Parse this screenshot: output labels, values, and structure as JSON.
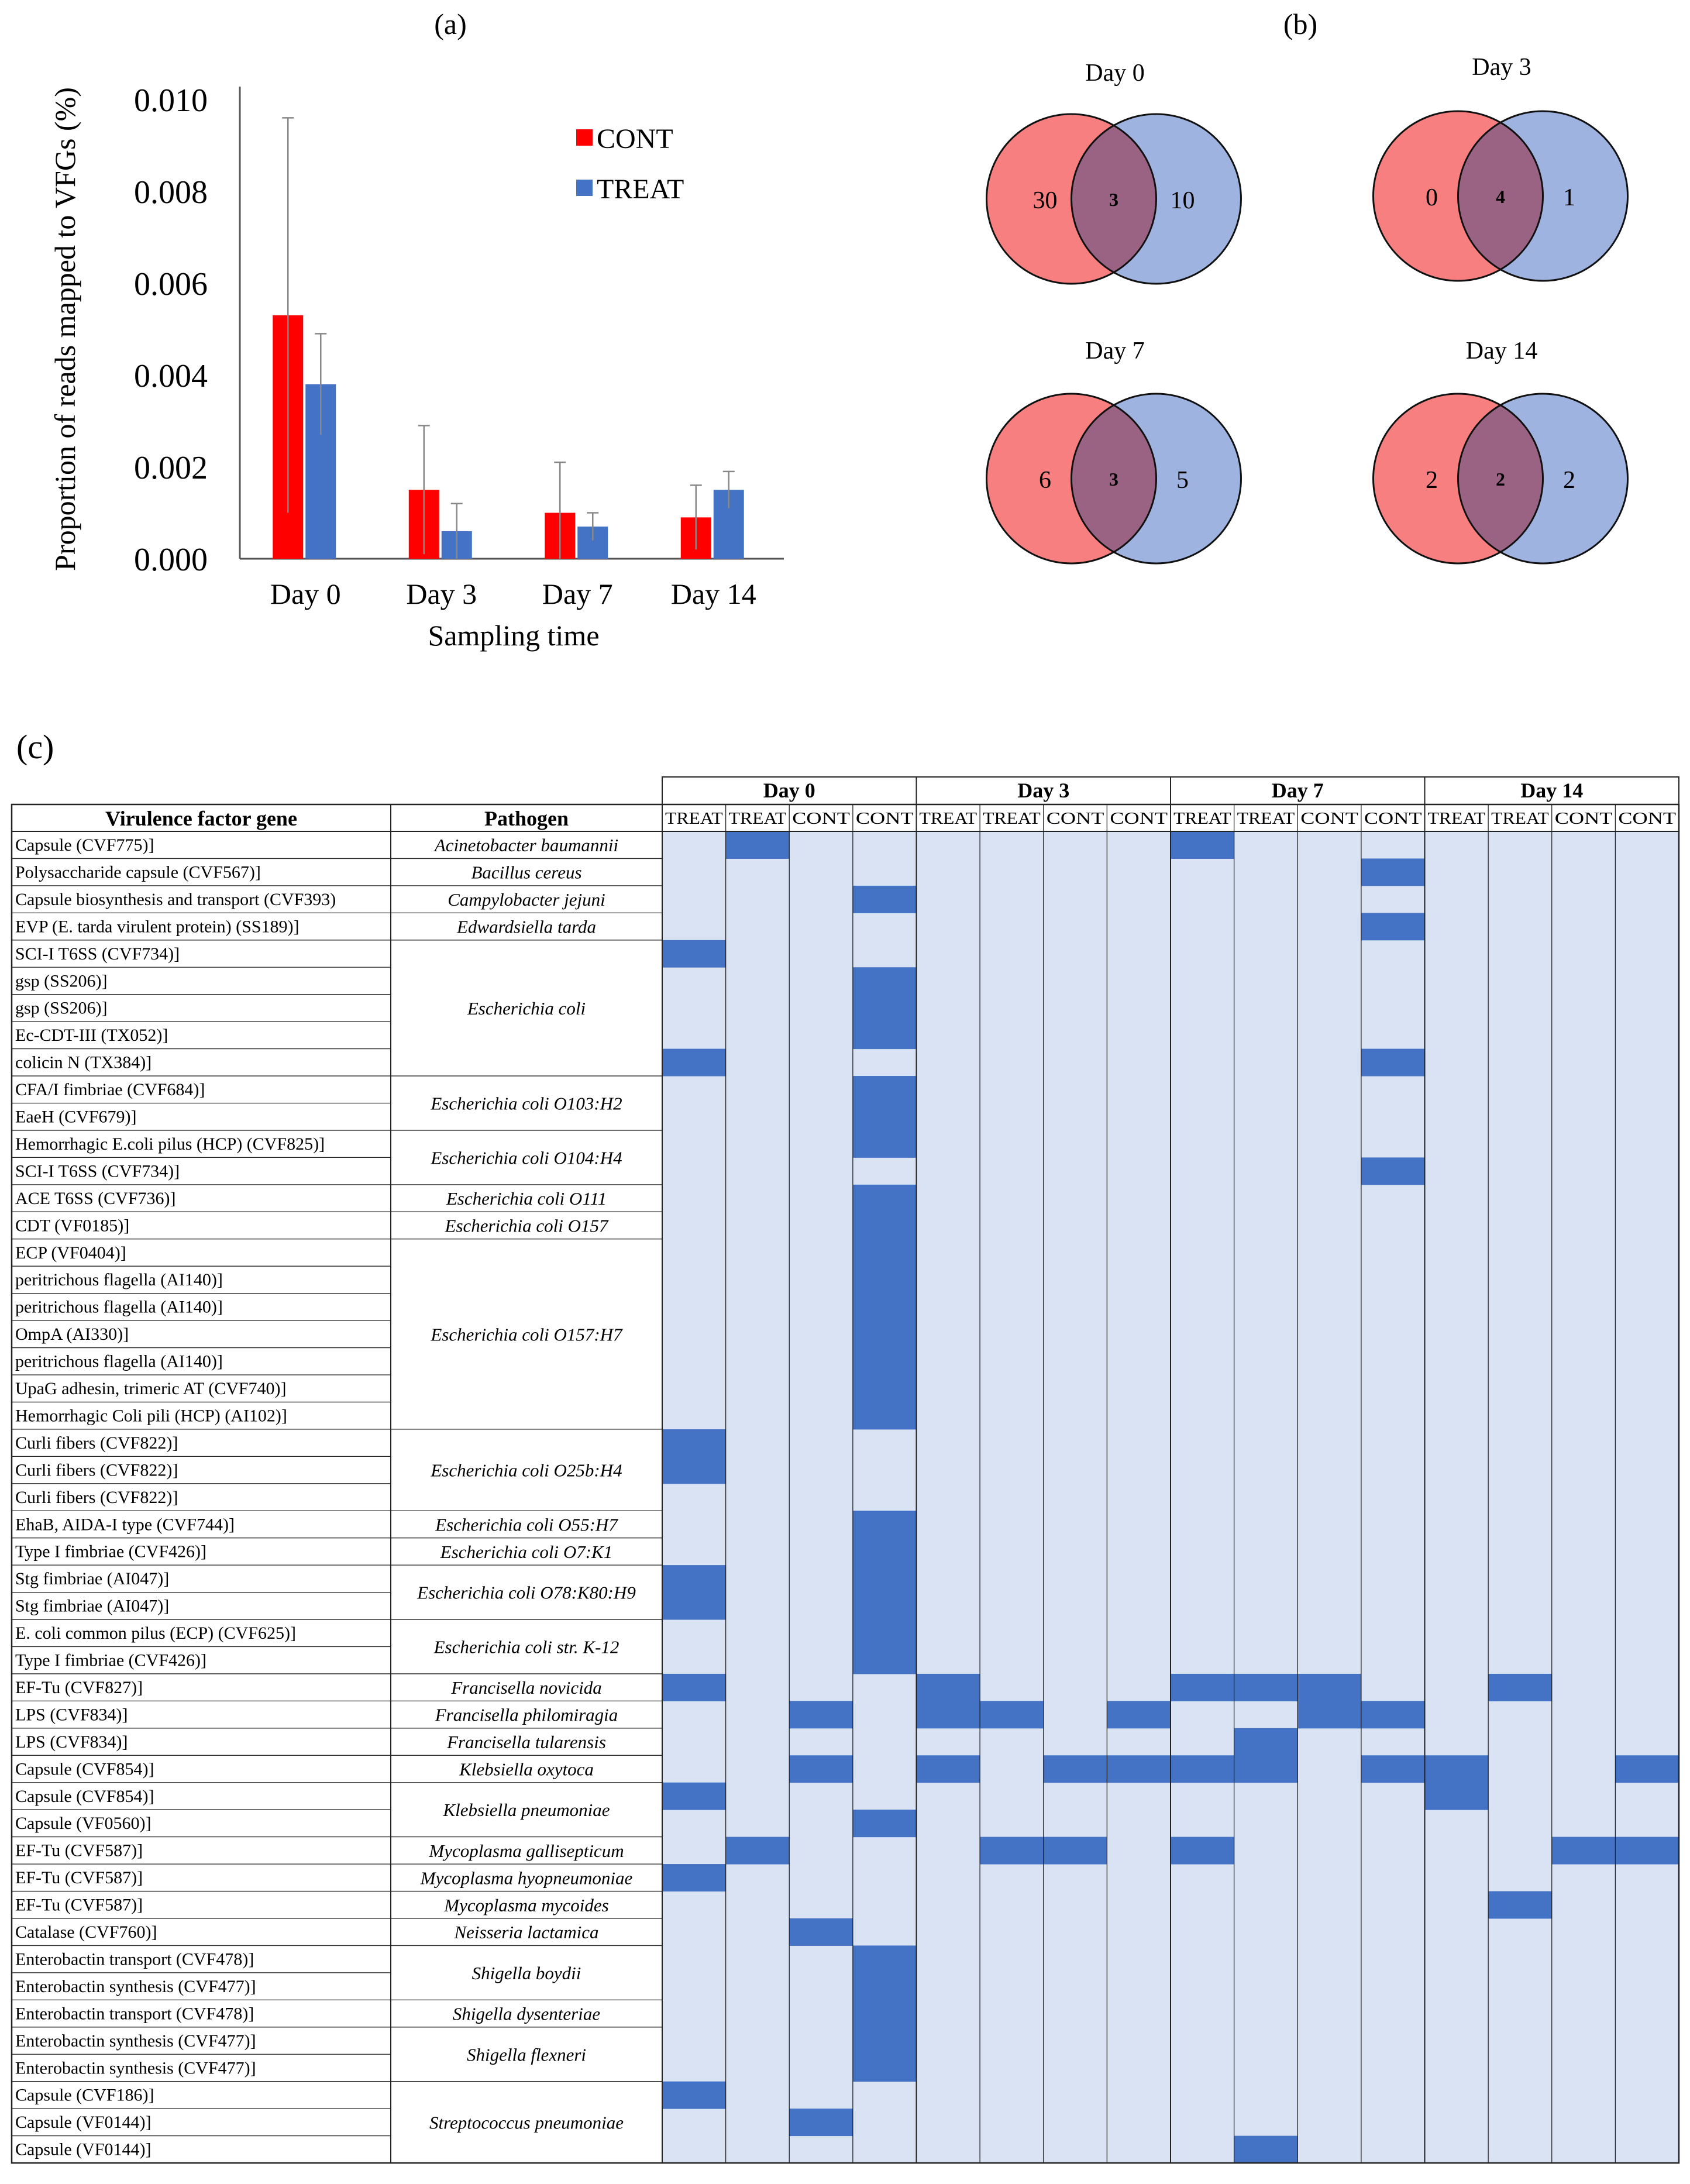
{
  "chart_data": [
    {
      "panel": "(a)",
      "type": "bar",
      "title": "",
      "xlabel": "Sampling time",
      "ylabel": "Proportion of reads mapped to VFGs (%)",
      "ylim": [
        0,
        0.01
      ],
      "yticks": [
        "0.000",
        "0.002",
        "0.004",
        "0.006",
        "0.008",
        "0.010"
      ],
      "categories": [
        "Day 0",
        "Day 3",
        "Day 7",
        "Day 14"
      ],
      "series": [
        {
          "name": "CONT",
          "color": "#ff0000",
          "values": [
            0.0053,
            0.0015,
            0.001,
            0.0009
          ],
          "error": [
            0.0043,
            0.0014,
            0.0011,
            0.0007
          ]
        },
        {
          "name": "TREAT",
          "color": "#4472c4",
          "values": [
            0.0038,
            0.0006,
            0.0007,
            0.0015
          ],
          "error": [
            0.0011,
            0.0006,
            0.0003,
            0.0004
          ]
        }
      ],
      "legend": "top-right"
    },
    {
      "panel": "(b)",
      "type": "venn",
      "left_color": "#f87f7f",
      "right_color": "#9fb3e0",
      "overlap_color": "#9a6384",
      "venns": [
        {
          "title": "Day 0",
          "left": "30",
          "overlap": "3",
          "right": "10"
        },
        {
          "title": "Day 3",
          "left": "0",
          "overlap": "4",
          "right": "1"
        },
        {
          "title": "Day 7",
          "left": "6",
          "overlap": "3",
          "right": "5"
        },
        {
          "title": "Day 14",
          "left": "2",
          "overlap": "2",
          "right": "2"
        }
      ]
    },
    {
      "panel": "(c)",
      "type": "table",
      "cell_bg": "#dae3f3",
      "fill_color": "#4472c4",
      "col_headers": [
        "Virulence factor gene",
        "Pathogen"
      ],
      "days": [
        "Day 0",
        "Day 3",
        "Day 7",
        "Day 14"
      ],
      "sub_cols": [
        "TREAT",
        "TREAT",
        "CONT",
        "CONT"
      ],
      "genes": [
        "Capsule (CVF775)]",
        "Polysaccharide capsule (CVF567)]",
        "Capsule biosynthesis and transport (CVF393)",
        "EVP (E. tarda virulent protein) (SS189)]",
        "SCI-I T6SS (CVF734)]",
        "gsp (SS206)]",
        "gsp (SS206)]",
        "Ec-CDT-III (TX052)]",
        "colicin N (TX384)]",
        "CFA/I fimbriae (CVF684)]",
        "EaeH (CVF679)]",
        "Hemorrhagic E.coli pilus (HCP) (CVF825)]",
        "SCI-I T6SS (CVF734)]",
        "ACE T6SS (CVF736)]",
        "CDT (VF0185)]",
        "ECP (VF0404)]",
        "peritrichous flagella (AI140)]",
        "peritrichous flagella (AI140)]",
        "OmpA (AI330)]",
        "peritrichous flagella (AI140)]",
        "UpaG adhesin, trimeric AT (CVF740)]",
        "Hemorrhagic Coli pili (HCP) (AI102)]",
        "Curli fibers (CVF822)]",
        "Curli fibers (CVF822)]",
        "Curli fibers (CVF822)]",
        "EhaB, AIDA-I type (CVF744)]",
        "Type I fimbriae (CVF426)]",
        "Stg fimbriae (AI047)]",
        "Stg fimbriae (AI047)]",
        "E. coli common pilus (ECP) (CVF625)]",
        "Type I fimbriae (CVF426)]",
        "EF-Tu (CVF827)]",
        "LPS (CVF834)]",
        "LPS (CVF834)]",
        "Capsule (CVF854)]",
        "Capsule (CVF854)]",
        "Capsule (VF0560)]",
        "EF-Tu (CVF587)]",
        "EF-Tu (CVF587)]",
        "EF-Tu (CVF587)]",
        "Catalase (CVF760)]",
        "Enterobactin transport (CVF478)]",
        "Enterobactin synthesis (CVF477)]",
        "Enterobactin transport (CVF478)]",
        "Enterobactin synthesis (CVF477)]",
        "Enterobactin synthesis (CVF477)]",
        "Capsule (CVF186)]",
        "Capsule (VF0144)]",
        "Capsule (VF0144)]"
      ],
      "pathogens": [
        {
          "name": "Acinetobacter baumannii",
          "start": 0,
          "span": 1
        },
        {
          "name": "Bacillus cereus",
          "start": 1,
          "span": 1
        },
        {
          "name": "Campylobacter jejuni",
          "start": 2,
          "span": 1
        },
        {
          "name": "Edwardsiella tarda",
          "start": 3,
          "span": 1
        },
        {
          "name": "Escherichia coli",
          "start": 4,
          "span": 5
        },
        {
          "name": "Escherichia coli O103:H2",
          "start": 9,
          "span": 2
        },
        {
          "name": "Escherichia coli O104:H4",
          "start": 11,
          "span": 2
        },
        {
          "name": "Escherichia coli O111",
          "start": 13,
          "span": 1
        },
        {
          "name": "Escherichia coli O157",
          "start": 14,
          "span": 1
        },
        {
          "name": "Escherichia coli O157:H7",
          "start": 15,
          "span": 7
        },
        {
          "name": "Escherichia coli O25b:H4",
          "start": 22,
          "span": 3
        },
        {
          "name": "Escherichia coli O55:H7",
          "start": 25,
          "span": 1
        },
        {
          "name": "Escherichia coli O7:K1",
          "start": 26,
          "span": 1
        },
        {
          "name": "Escherichia coli O78:K80:H9",
          "start": 27,
          "span": 2
        },
        {
          "name": "Escherichia coli str. K-12",
          "start": 29,
          "span": 2
        },
        {
          "name": "Francisella novicida",
          "start": 31,
          "span": 1
        },
        {
          "name": "Francisella philomiragia",
          "start": 32,
          "span": 1
        },
        {
          "name": "Francisella tularensis",
          "start": 33,
          "span": 1
        },
        {
          "name": "Klebsiella oxytoca",
          "start": 34,
          "span": 1
        },
        {
          "name": "Klebsiella pneumoniae",
          "start": 35,
          "span": 2
        },
        {
          "name": "Mycoplasma gallisepticum",
          "start": 37,
          "span": 1
        },
        {
          "name": "Mycoplasma hyopneumoniae",
          "start": 38,
          "span": 1
        },
        {
          "name": "Mycoplasma mycoides",
          "start": 39,
          "span": 1
        },
        {
          "name": "Neisseria lactamica",
          "start": 40,
          "span": 1
        },
        {
          "name": "Shigella boydii",
          "start": 41,
          "span": 2
        },
        {
          "name": "Shigella dysenteriae",
          "start": 43,
          "span": 1
        },
        {
          "name": "Shigella flexneri",
          "start": 44,
          "span": 2
        },
        {
          "name": "Streptococcus pneumoniae",
          "start": 46,
          "span": 3
        }
      ],
      "filled_cells": [
        [
          0,
          1
        ],
        [
          0,
          8
        ],
        [
          1,
          11
        ],
        [
          2,
          3
        ],
        [
          3,
          11
        ],
        [
          4,
          0
        ],
        [
          5,
          3
        ],
        [
          6,
          3
        ],
        [
          7,
          3
        ],
        [
          8,
          0
        ],
        [
          8,
          11
        ],
        [
          9,
          3
        ],
        [
          10,
          3
        ],
        [
          11,
          3
        ],
        [
          12,
          11
        ],
        [
          13,
          3
        ],
        [
          14,
          3
        ],
        [
          15,
          3
        ],
        [
          16,
          3
        ],
        [
          17,
          3
        ],
        [
          18,
          3
        ],
        [
          19,
          3
        ],
        [
          20,
          3
        ],
        [
          21,
          3
        ],
        [
          22,
          0
        ],
        [
          23,
          0
        ],
        [
          25,
          3
        ],
        [
          26,
          3
        ],
        [
          27,
          0
        ],
        [
          27,
          3
        ],
        [
          28,
          0
        ],
        [
          28,
          3
        ],
        [
          29,
          3
        ],
        [
          30,
          3
        ],
        [
          31,
          0
        ],
        [
          31,
          4
        ],
        [
          31,
          8
        ],
        [
          31,
          9
        ],
        [
          31,
          10
        ],
        [
          31,
          13
        ],
        [
          32,
          2
        ],
        [
          32,
          4
        ],
        [
          32,
          5
        ],
        [
          32,
          7
        ],
        [
          32,
          10
        ],
        [
          32,
          11
        ],
        [
          33,
          9
        ],
        [
          34,
          2
        ],
        [
          34,
          4
        ],
        [
          34,
          6
        ],
        [
          34,
          7
        ],
        [
          34,
          8
        ],
        [
          34,
          9
        ],
        [
          34,
          11
        ],
        [
          34,
          12
        ],
        [
          34,
          15
        ],
        [
          35,
          0
        ],
        [
          35,
          12
        ],
        [
          36,
          3
        ],
        [
          37,
          1
        ],
        [
          37,
          5
        ],
        [
          37,
          6
        ],
        [
          37,
          8
        ],
        [
          37,
          14
        ],
        [
          37,
          15
        ],
        [
          38,
          0
        ],
        [
          39,
          13
        ],
        [
          40,
          2
        ],
        [
          41,
          3
        ],
        [
          42,
          3
        ],
        [
          43,
          3
        ],
        [
          44,
          3
        ],
        [
          45,
          3
        ],
        [
          46,
          0
        ],
        [
          47,
          2
        ],
        [
          48,
          9
        ]
      ]
    }
  ]
}
